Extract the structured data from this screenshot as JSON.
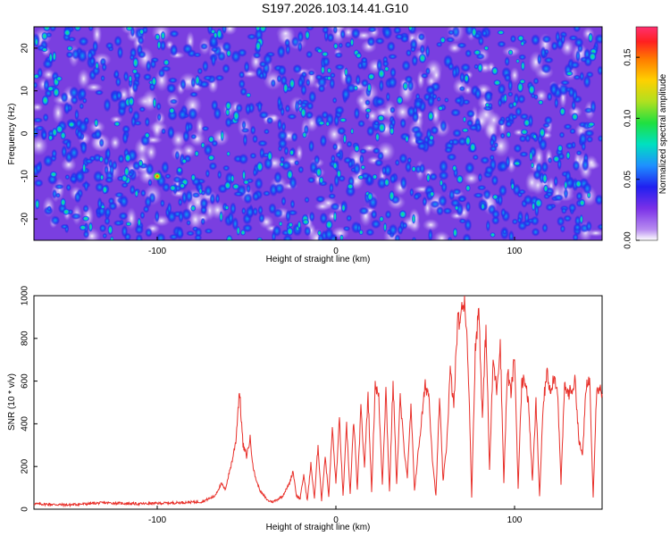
{
  "title": "S197.2026.103.14.41.G10",
  "chart_data": [
    {
      "type": "heatmap",
      "title": "S197.2026.103.14.41.G10",
      "xlabel": "Height of straight line (km)",
      "ylabel": "Frequency (Hz)",
      "xlim": [
        -169,
        149
      ],
      "ylim": [
        -25,
        25
      ],
      "xticks": [
        -100,
        0,
        100
      ],
      "yticks": [
        -20,
        -10,
        0,
        10,
        20
      ],
      "colorbar": {
        "label": "Normalized spectral amplitude",
        "range": [
          0.0,
          0.175
        ],
        "ticks": [
          "0.00",
          "0.05",
          "0.10",
          "0.15"
        ],
        "colors": [
          "#ffffff",
          "#9b4ae0",
          "#6a2fe0",
          "#2020f0",
          "#1e90ff",
          "#00e0c0",
          "#20e040",
          "#b0e020",
          "#ffd000",
          "#ff7a00",
          "#ff2020",
          "#ff3070"
        ]
      }
    },
    {
      "type": "line",
      "xlabel": "Height of straight line (km)",
      "ylabel": "SNR (10 * v/v)",
      "xlim": [
        -169,
        149
      ],
      "ylim": [
        0,
        1000
      ],
      "xticks": [
        -100,
        0,
        100
      ],
      "yticks": [
        0,
        200,
        400,
        600,
        800,
        1000
      ],
      "series": [
        {
          "name": "SNR",
          "color": "#e8302a",
          "x": [
            -169,
            -150,
            -130,
            -110,
            -90,
            -75,
            -68,
            -64,
            -62,
            -60,
            -58,
            -56,
            -54,
            -52,
            -50,
            -48,
            -46,
            -44,
            -42,
            -40,
            -38,
            -35,
            -30,
            -26,
            -24,
            -22,
            -20,
            -18,
            -16,
            -14,
            -12,
            -10,
            -8,
            -6,
            -4,
            -2,
            0,
            2,
            4,
            6,
            8,
            10,
            12,
            14,
            16,
            18,
            20,
            22,
            24,
            26,
            28,
            30,
            32,
            34,
            36,
            38,
            40,
            42,
            44,
            46,
            48,
            50,
            52,
            54,
            56,
            58,
            60,
            62,
            64,
            66,
            68,
            70,
            72,
            74,
            76,
            78,
            80,
            82,
            84,
            86,
            88,
            90,
            92,
            94,
            96,
            98,
            100,
            102,
            104,
            106,
            108,
            110,
            112,
            114,
            116,
            118,
            120,
            122,
            124,
            126,
            128,
            130,
            132,
            134,
            136,
            138,
            140,
            142,
            144,
            146,
            148,
            149
          ],
          "y": [
            25,
            20,
            30,
            25,
            30,
            35,
            60,
            120,
            90,
            160,
            230,
            320,
            560,
            300,
            250,
            330,
            180,
            120,
            80,
            60,
            40,
            35,
            60,
            120,
            180,
            60,
            50,
            160,
            40,
            210,
            50,
            300,
            40,
            250,
            60,
            380,
            120,
            420,
            60,
            390,
            70,
            420,
            90,
            470,
            200,
            540,
            80,
            590,
            520,
            120,
            560,
            80,
            600,
            120,
            520,
            300,
            150,
            480,
            90,
            260,
            420,
            580,
            540,
            240,
            60,
            520,
            130,
            300,
            650,
            480,
            870,
            900,
            1000,
            700,
            60,
            740,
            950,
            420,
            860,
            180,
            700,
            560,
            780,
            130,
            650,
            540,
            720,
            100,
            590,
            610,
            470,
            130,
            500,
            60,
            480,
            640,
            560,
            620,
            570,
            120,
            580,
            540,
            560,
            600,
            320,
            250,
            560,
            620,
            60,
            580,
            560,
            540
          ]
        }
      ]
    }
  ]
}
